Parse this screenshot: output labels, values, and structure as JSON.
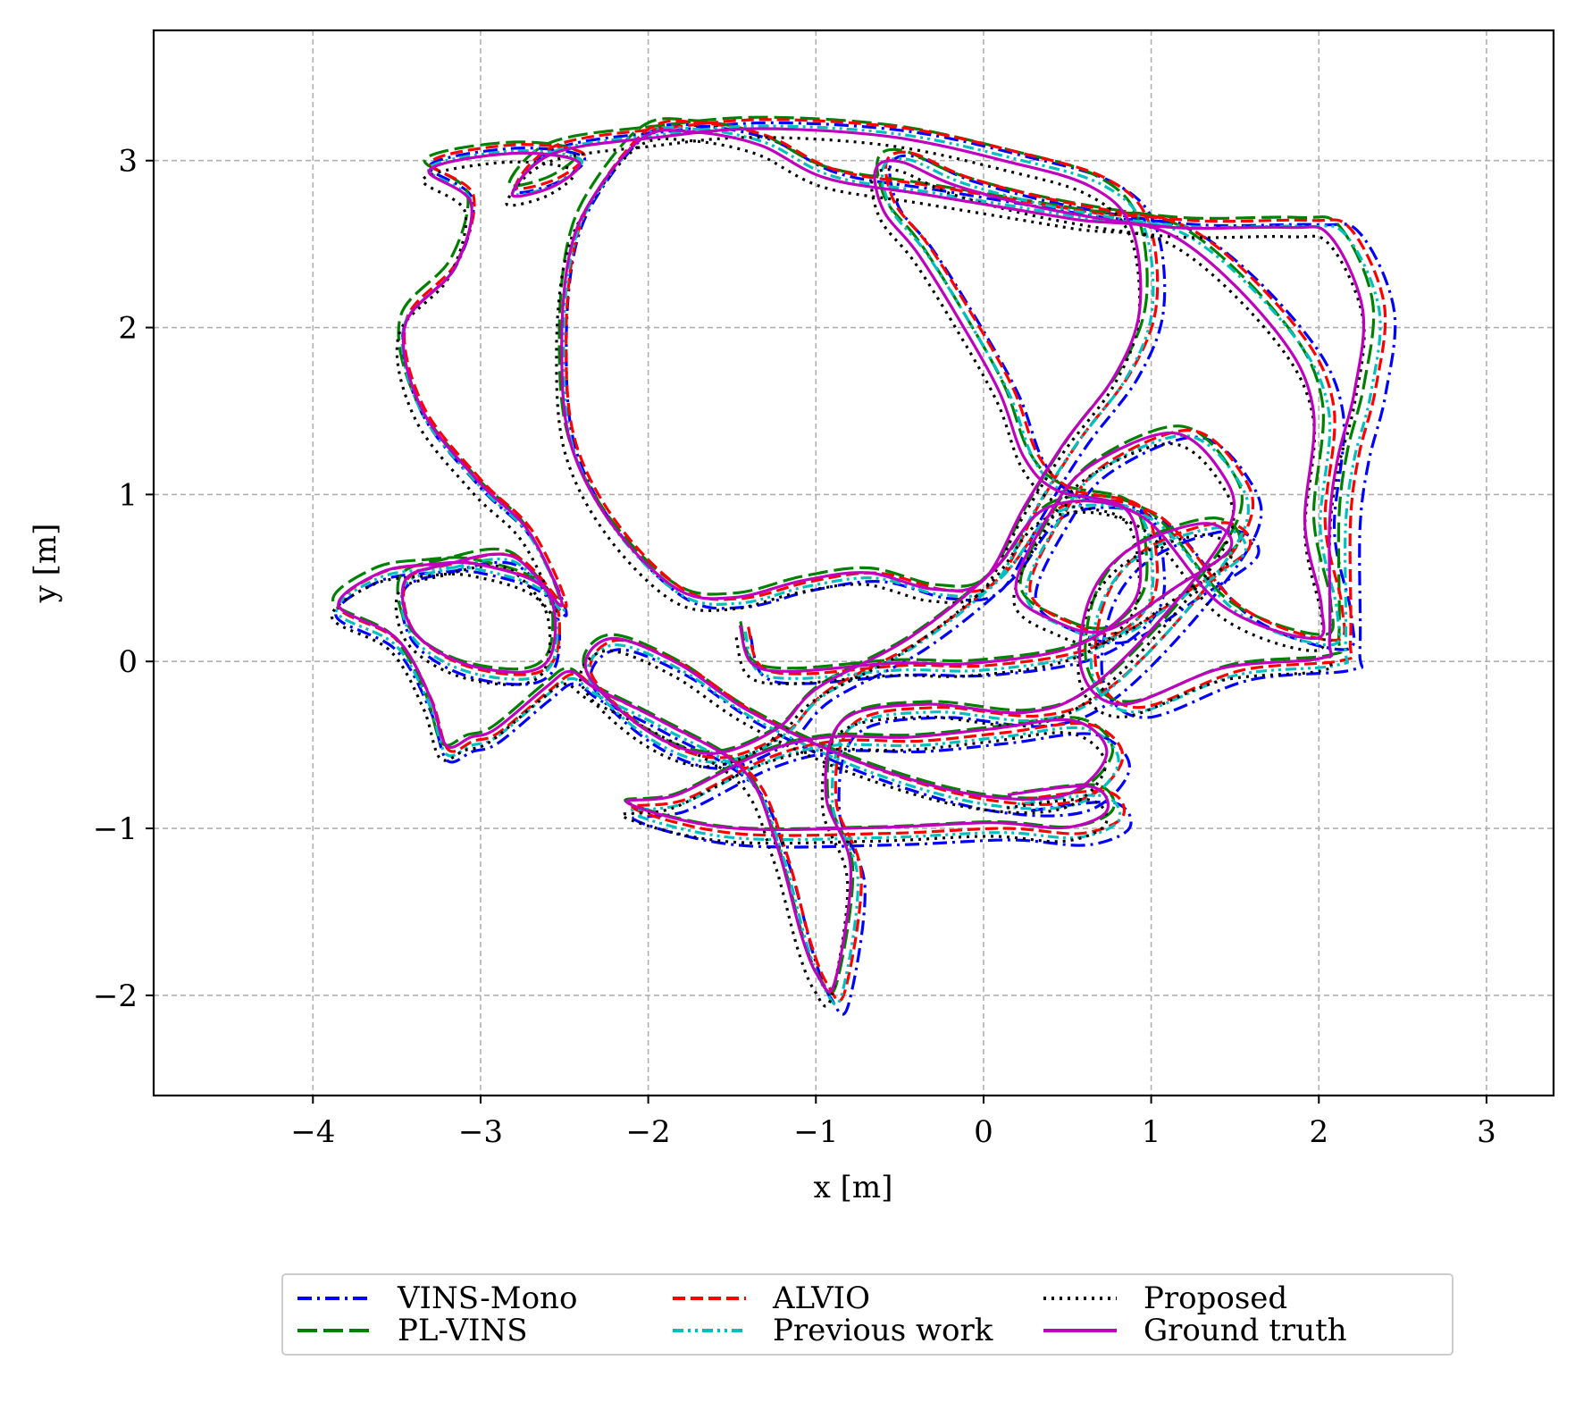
{
  "chart_data": {
    "type": "line",
    "xlabel": "x [m]",
    "ylabel": "y [m]",
    "xlim": [
      -4.95,
      3.4
    ],
    "ylim": [
      -2.6,
      3.78
    ],
    "xticks": [
      -4,
      -3,
      -2,
      -1,
      0,
      1,
      2,
      3
    ],
    "yticks": [
      -2,
      -1,
      0,
      1,
      2,
      3
    ],
    "xtick_labels": [
      "−4",
      "−3",
      "−2",
      "−1",
      "0",
      "1",
      "2",
      "3"
    ],
    "ytick_labels": [
      "−2",
      "−1",
      "0",
      "1",
      "2",
      "3"
    ],
    "grid": true,
    "legend_position": "bottom-center",
    "base_path": [
      [
        -1.42,
        0.18
      ],
      [
        -1.35,
        -0.05
      ],
      [
        -1.1,
        -0.1
      ],
      [
        -0.5,
        -0.05
      ],
      [
        0.0,
        -0.05
      ],
      [
        0.6,
        0.05
      ],
      [
        0.95,
        0.3
      ],
      [
        1.0,
        0.6
      ],
      [
        0.9,
        0.9
      ],
      [
        0.5,
        1.0
      ],
      [
        0.3,
        1.2
      ],
      [
        0.15,
        1.6
      ],
      [
        -0.1,
        2.05
      ],
      [
        -0.35,
        2.45
      ],
      [
        -0.55,
        2.7
      ],
      [
        -0.6,
        2.95
      ],
      [
        -0.45,
        3.0
      ],
      [
        -0.1,
        2.85
      ],
      [
        0.5,
        2.7
      ],
      [
        1.2,
        2.6
      ],
      [
        1.9,
        2.6
      ],
      [
        2.15,
        2.55
      ],
      [
        2.35,
        2.1
      ],
      [
        2.3,
        1.6
      ],
      [
        2.2,
        1.2
      ],
      [
        2.15,
        0.8
      ],
      [
        2.15,
        0.1
      ],
      [
        2.1,
        -0.02
      ],
      [
        1.5,
        -0.08
      ],
      [
        0.9,
        -0.3
      ],
      [
        0.65,
        -0.1
      ],
      [
        0.7,
        0.35
      ],
      [
        0.95,
        0.65
      ],
      [
        1.4,
        0.8
      ],
      [
        1.55,
        0.65
      ],
      [
        1.2,
        0.4
      ],
      [
        0.8,
        0.15
      ],
      [
        0.5,
        0.2
      ],
      [
        0.25,
        0.4
      ],
      [
        0.45,
        0.85
      ],
      [
        0.7,
        1.15
      ],
      [
        1.2,
        1.35
      ],
      [
        1.5,
        1.1
      ],
      [
        1.55,
        0.8
      ],
      [
        1.2,
        0.3
      ],
      [
        0.7,
        -0.2
      ],
      [
        0.3,
        -0.35
      ],
      [
        -0.3,
        -0.3
      ],
      [
        -0.8,
        -0.4
      ],
      [
        -0.9,
        -0.85
      ],
      [
        -0.75,
        -1.3
      ],
      [
        -0.85,
        -2.0
      ],
      [
        -0.95,
        -1.95
      ],
      [
        -1.05,
        -1.7
      ],
      [
        -1.2,
        -1.15
      ],
      [
        -1.4,
        -0.7
      ],
      [
        -1.9,
        -0.4
      ],
      [
        -2.3,
        -0.2
      ],
      [
        -2.45,
        -0.1
      ],
      [
        -2.6,
        -0.2
      ],
      [
        -2.9,
        -0.45
      ],
      [
        -3.05,
        -0.5
      ],
      [
        -3.2,
        -0.55
      ],
      [
        -3.3,
        -0.25
      ],
      [
        -3.5,
        0.1
      ],
      [
        -3.85,
        0.3
      ],
      [
        -3.6,
        0.5
      ],
      [
        -3.3,
        0.55
      ],
      [
        -3.0,
        0.55
      ],
      [
        -2.6,
        0.4
      ],
      [
        -2.55,
        0.05
      ],
      [
        -2.7,
        -0.1
      ],
      [
        -3.1,
        -0.05
      ],
      [
        -3.4,
        0.15
      ],
      [
        -3.45,
        0.45
      ],
      [
        -3.2,
        0.55
      ],
      [
        -2.8,
        0.6
      ],
      [
        -2.5,
        0.3
      ],
      [
        -2.7,
        0.75
      ],
      [
        -3.0,
        1.05
      ],
      [
        -3.35,
        1.5
      ],
      [
        -3.45,
        2.0
      ],
      [
        -3.15,
        2.35
      ],
      [
        -3.05,
        2.75
      ],
      [
        -3.3,
        2.95
      ],
      [
        -2.8,
        3.05
      ],
      [
        -2.4,
        3.0
      ],
      [
        -2.55,
        2.85
      ],
      [
        -2.8,
        2.8
      ],
      [
        -2.55,
        3.05
      ],
      [
        -1.9,
        3.15
      ],
      [
        -1.3,
        3.2
      ],
      [
        -0.5,
        3.15
      ],
      [
        0.2,
        3.0
      ],
      [
        0.7,
        2.85
      ],
      [
        0.95,
        2.6
      ],
      [
        1.0,
        2.1
      ],
      [
        0.85,
        1.7
      ],
      [
        0.55,
        1.3
      ],
      [
        0.3,
        0.9
      ],
      [
        0.05,
        0.45
      ],
      [
        -0.25,
        0.4
      ],
      [
        -0.65,
        0.5
      ],
      [
        -1.05,
        0.45
      ],
      [
        -1.45,
        0.35
      ],
      [
        -1.8,
        0.4
      ],
      [
        -2.2,
        0.8
      ],
      [
        -2.45,
        1.3
      ],
      [
        -2.5,
        1.9
      ],
      [
        -2.45,
        2.45
      ],
      [
        -2.3,
        2.8
      ],
      [
        -2.0,
        3.15
      ],
      [
        -1.7,
        3.18
      ],
      [
        -1.3,
        3.1
      ],
      [
        -0.9,
        2.9
      ],
      [
        -0.3,
        2.8
      ],
      [
        0.6,
        2.65
      ],
      [
        1.2,
        2.55
      ],
      [
        1.8,
        2.0
      ],
      [
        2.05,
        1.5
      ],
      [
        2.0,
        0.8
      ],
      [
        2.1,
        0.3
      ],
      [
        2.05,
        0.1
      ],
      [
        1.5,
        0.3
      ],
      [
        1.0,
        0.85
      ],
      [
        0.45,
        0.9
      ],
      [
        0.1,
        0.5
      ],
      [
        -0.4,
        0.1
      ],
      [
        -0.95,
        -0.2
      ],
      [
        -1.2,
        -0.45
      ],
      [
        -1.6,
        -0.6
      ],
      [
        -2.0,
        -0.45
      ],
      [
        -2.35,
        -0.1
      ],
      [
        -2.2,
        0.1
      ],
      [
        -1.8,
        -0.05
      ],
      [
        -1.35,
        -0.35
      ],
      [
        -0.7,
        -0.65
      ],
      [
        0.0,
        -0.85
      ],
      [
        0.55,
        -0.85
      ],
      [
        0.8,
        -0.6
      ],
      [
        0.6,
        -0.4
      ],
      [
        0.1,
        -0.45
      ],
      [
        -0.4,
        -0.5
      ],
      [
        -0.9,
        -0.5
      ],
      [
        -1.3,
        -0.6
      ],
      [
        -1.8,
        -0.85
      ],
      [
        -2.1,
        -0.9
      ],
      [
        -1.5,
        -1.05
      ],
      [
        -0.6,
        -1.05
      ],
      [
        0.1,
        -1.02
      ],
      [
        0.55,
        -1.05
      ],
      [
        0.8,
        -0.95
      ],
      [
        0.7,
        -0.8
      ],
      [
        0.2,
        -0.85
      ]
    ],
    "series": [
      {
        "name": "VINS-Mono",
        "color": "#0000ff",
        "dash": "dashdot",
        "offset": [
          0.04,
          -0.02
        ],
        "scale": 1.018
      },
      {
        "name": "PL-VINS",
        "color": "#008000",
        "dash": "longdash",
        "offset": [
          -0.03,
          0.06
        ],
        "scale": 1.0
      },
      {
        "name": "ALVIO",
        "color": "#ff0000",
        "dash": "dashed",
        "offset": [
          0.02,
          0.03
        ],
        "scale": 1.006
      },
      {
        "name": "Previous work",
        "color": "#00bfbf",
        "dash": "dashdotdot",
        "offset": [
          0.0,
          0.0
        ],
        "scale": 1.003
      },
      {
        "name": "Proposed",
        "color": "#000000",
        "dash": "dotted",
        "offset": [
          -0.06,
          -0.04
        ],
        "scale": 0.992
      },
      {
        "name": "Ground truth",
        "color": "#bf00bf",
        "dash": "solid",
        "offset": [
          -0.04,
          0.03
        ],
        "scale": 0.985
      }
    ]
  }
}
